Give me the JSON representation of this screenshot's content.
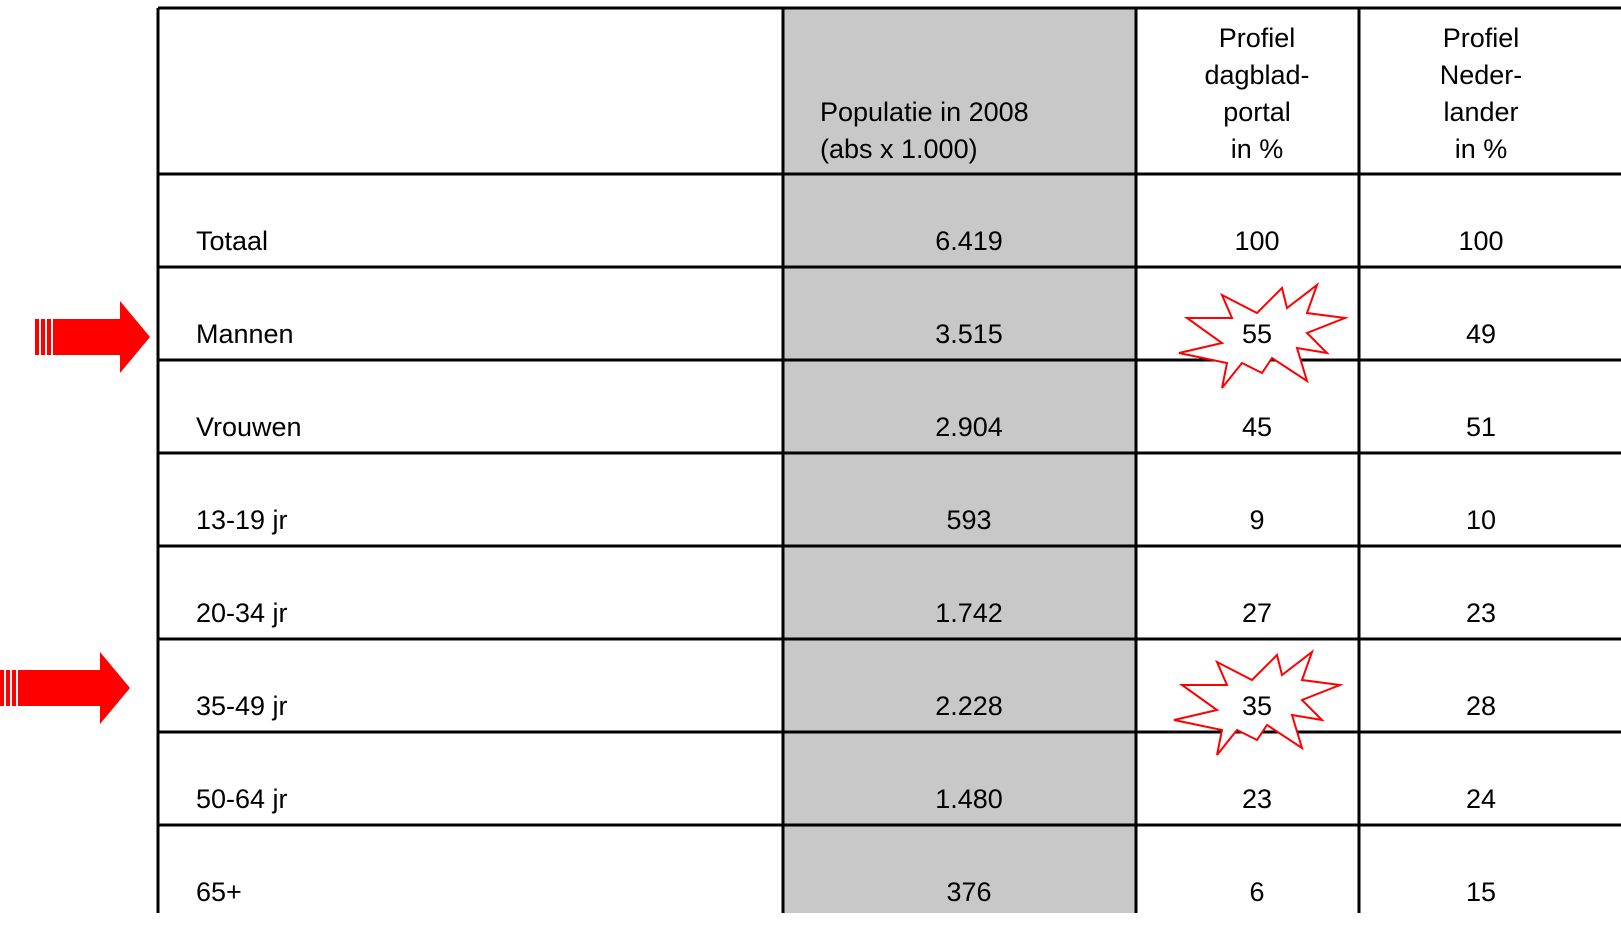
{
  "table": {
    "header": [
      [],
      [
        "Populatie in 2008",
        "(abs x 1.000)"
      ],
      [
        "Profiel",
        "dagblad-",
        "portal",
        "in %"
      ],
      [
        "Profiel",
        "Neder-",
        "lander",
        "in %"
      ]
    ],
    "rows": [
      [
        "Totaal",
        "6.419",
        "100",
        "100"
      ],
      [
        "Mannen",
        "3.515",
        "55",
        "49"
      ],
      [
        "Vrouwen",
        "2.904",
        "45",
        "51"
      ],
      [
        "13-19 jr",
        "593",
        "9",
        "10"
      ],
      [
        "20-34 jr",
        "1.742",
        "27",
        "23"
      ],
      [
        "35-49 jr",
        "2.228",
        "35",
        "28"
      ],
      [
        "50-64 jr",
        "1.480",
        "23",
        "24"
      ],
      [
        "65+",
        "376",
        "6",
        "15"
      ]
    ]
  }
}
